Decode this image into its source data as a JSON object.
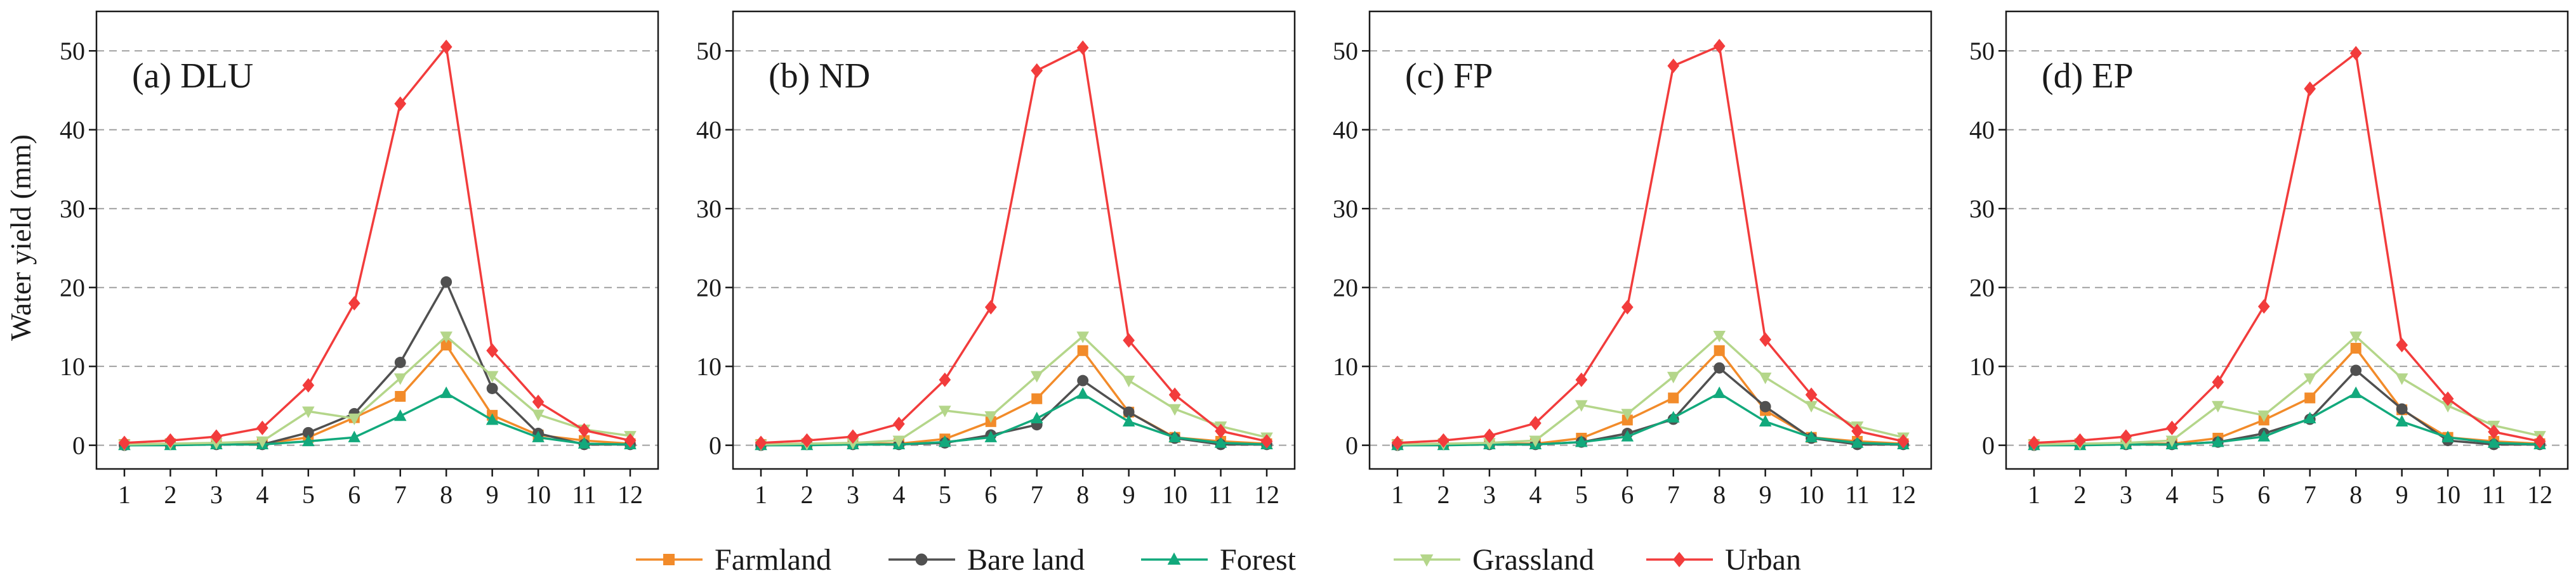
{
  "chart_data": [
    {
      "type": "line",
      "title": "(a) DLU",
      "xlabel": "",
      "ylabel": "Water yield (mm)",
      "x": [
        "1",
        "2",
        "3",
        "4",
        "5",
        "6",
        "7",
        "8",
        "9",
        "10",
        "11",
        "12"
      ],
      "ylim": [
        -3,
        55
      ],
      "yticks": [
        0,
        10,
        20,
        30,
        40,
        50
      ],
      "grid": "horizontal-dashed",
      "series": [
        {
          "name": "Farmland",
          "values": [
            0.1,
            0.2,
            0.2,
            0.2,
            1.0,
            3.5,
            6.2,
            12.7,
            3.8,
            1.3,
            0.6,
            0.2
          ]
        },
        {
          "name": "Bare land",
          "values": [
            0.0,
            0.1,
            0.1,
            0.1,
            1.6,
            4.0,
            10.5,
            20.7,
            7.2,
            1.5,
            0.1,
            0.1
          ]
        },
        {
          "name": "Forest",
          "values": [
            0.0,
            0.0,
            0.1,
            0.1,
            0.5,
            1.0,
            3.7,
            6.6,
            3.2,
            1.0,
            0.2,
            0.1
          ]
        },
        {
          "name": "Grassland",
          "values": [
            0.1,
            0.2,
            0.3,
            0.5,
            4.3,
            3.4,
            8.5,
            13.8,
            8.8,
            3.9,
            2.0,
            1.2
          ]
        },
        {
          "name": "Urban",
          "values": [
            0.3,
            0.6,
            1.1,
            2.2,
            7.6,
            18.0,
            43.3,
            50.5,
            12.0,
            5.5,
            1.9,
            0.6
          ]
        }
      ]
    },
    {
      "type": "line",
      "title": "(b) ND",
      "xlabel": "",
      "ylabel": "",
      "x": [
        "1",
        "2",
        "3",
        "4",
        "5",
        "6",
        "7",
        "8",
        "9",
        "10",
        "11",
        "12"
      ],
      "ylim": [
        -3,
        55
      ],
      "yticks": [
        0,
        10,
        20,
        30,
        40,
        50
      ],
      "grid": "horizontal-dashed",
      "series": [
        {
          "name": "Farmland",
          "values": [
            0.1,
            0.2,
            0.2,
            0.2,
            0.8,
            3.0,
            5.9,
            12.0,
            4.2,
            1.0,
            0.5,
            0.2
          ]
        },
        {
          "name": "Bare land",
          "values": [
            0.0,
            0.1,
            0.1,
            0.1,
            0.3,
            1.3,
            2.6,
            8.2,
            4.2,
            0.9,
            0.1,
            0.1
          ]
        },
        {
          "name": "Forest",
          "values": [
            0.0,
            0.0,
            0.1,
            0.1,
            0.4,
            1.0,
            3.4,
            6.5,
            3.0,
            1.0,
            0.3,
            0.1
          ]
        },
        {
          "name": "Grassland",
          "values": [
            0.1,
            0.2,
            0.3,
            0.6,
            4.4,
            3.7,
            8.8,
            13.8,
            8.2,
            4.6,
            2.4,
            1.0
          ]
        },
        {
          "name": "Urban",
          "values": [
            0.3,
            0.6,
            1.1,
            2.7,
            8.3,
            17.5,
            47.5,
            50.4,
            13.3,
            6.4,
            1.8,
            0.5
          ]
        }
      ]
    },
    {
      "type": "line",
      "title": "(c) FP",
      "xlabel": "",
      "ylabel": "",
      "x": [
        "1",
        "2",
        "3",
        "4",
        "5",
        "6",
        "7",
        "8",
        "9",
        "10",
        "11",
        "12"
      ],
      "ylim": [
        -3,
        55
      ],
      "yticks": [
        0,
        10,
        20,
        30,
        40,
        50
      ],
      "grid": "horizontal-dashed",
      "series": [
        {
          "name": "Farmland",
          "values": [
            0.1,
            0.2,
            0.2,
            0.2,
            0.9,
            3.2,
            6.0,
            12.0,
            4.4,
            1.0,
            0.5,
            0.2
          ]
        },
        {
          "name": "Bare land",
          "values": [
            0.0,
            0.1,
            0.1,
            0.1,
            0.4,
            1.5,
            3.3,
            9.8,
            4.9,
            0.9,
            0.1,
            0.1
          ]
        },
        {
          "name": "Forest",
          "values": [
            0.0,
            0.0,
            0.1,
            0.1,
            0.4,
            1.1,
            3.5,
            6.6,
            3.0,
            1.0,
            0.3,
            0.1
          ]
        },
        {
          "name": "Grassland",
          "values": [
            0.1,
            0.2,
            0.3,
            0.6,
            5.1,
            4.0,
            8.7,
            13.9,
            8.6,
            5.0,
            2.4,
            1.0
          ]
        },
        {
          "name": "Urban",
          "values": [
            0.3,
            0.6,
            1.2,
            2.8,
            8.3,
            17.5,
            48.1,
            50.6,
            13.4,
            6.4,
            1.8,
            0.5
          ]
        }
      ]
    },
    {
      "type": "line",
      "title": "(d) EP",
      "xlabel": "",
      "ylabel": "",
      "x": [
        "1",
        "2",
        "3",
        "4",
        "5",
        "6",
        "7",
        "8",
        "9",
        "10",
        "11",
        "12"
      ],
      "ylim": [
        -3,
        55
      ],
      "yticks": [
        0,
        10,
        20,
        30,
        40,
        50
      ],
      "grid": "horizontal-dashed",
      "series": [
        {
          "name": "Farmland",
          "values": [
            0.1,
            0.2,
            0.2,
            0.2,
            0.9,
            3.2,
            6.0,
            12.3,
            4.5,
            1.0,
            0.5,
            0.2
          ]
        },
        {
          "name": "Bare land",
          "values": [
            0.0,
            0.1,
            0.1,
            0.1,
            0.4,
            1.5,
            3.3,
            9.5,
            4.6,
            0.6,
            0.1,
            0.1
          ]
        },
        {
          "name": "Forest",
          "values": [
            0.0,
            0.0,
            0.1,
            0.1,
            0.4,
            1.1,
            3.4,
            6.6,
            3.0,
            1.0,
            0.3,
            0.1
          ]
        },
        {
          "name": "Grassland",
          "values": [
            0.1,
            0.2,
            0.3,
            0.6,
            5.0,
            3.8,
            8.5,
            13.8,
            8.5,
            5.0,
            2.5,
            1.2
          ]
        },
        {
          "name": "Urban",
          "values": [
            0.3,
            0.6,
            1.1,
            2.2,
            8.0,
            17.6,
            45.2,
            49.7,
            12.7,
            5.9,
            1.7,
            0.5
          ]
        }
      ]
    }
  ],
  "legend": {
    "placement": "bottom-center",
    "entries": [
      {
        "name": "Farmland",
        "color": "#f28b2a",
        "marker": "square"
      },
      {
        "name": "Bare land",
        "color": "#505050",
        "marker": "circle"
      },
      {
        "name": "Forest",
        "color": "#12a97c",
        "marker": "triangle-up"
      },
      {
        "name": "Grassland",
        "color": "#b4d68a",
        "marker": "triangle-down"
      },
      {
        "name": "Urban",
        "color": "#f23c3c",
        "marker": "diamond"
      }
    ]
  },
  "colors": {
    "Farmland": "#f28b2a",
    "Bare land": "#505050",
    "Forest": "#12a97c",
    "Grassland": "#b4d68a",
    "Urban": "#f23c3c",
    "grid": "#a0a0a0",
    "axis": "#1a1a1a"
  }
}
